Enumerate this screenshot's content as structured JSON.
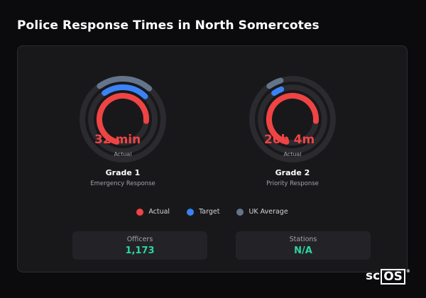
{
  "title": "Police Response Times in North Somercotes",
  "colors": {
    "actual": "#ef4444",
    "target": "#3b82f6",
    "uk_average": "#64748b",
    "stat_value": "#2dd4a3"
  },
  "gauges": [
    {
      "value_text": "32 min",
      "sub_label": "Actual",
      "name": "Grade 1",
      "description": "Emergency Response",
      "actual_fraction": 0.72,
      "target_fraction": 0.22,
      "uk_fraction": 0.21
    },
    {
      "value_text": "20h 4m",
      "sub_label": "Actual",
      "name": "Grade 2",
      "description": "Priority Response",
      "actual_fraction": 0.72,
      "target_fraction": 0.04,
      "uk_fraction": 0.05
    }
  ],
  "legend": [
    {
      "label": "Actual",
      "color": "#ef4444"
    },
    {
      "label": "Target",
      "color": "#3b82f6"
    },
    {
      "label": "UK Average",
      "color": "#64748b"
    }
  ],
  "stats": [
    {
      "label": "Officers",
      "value": "1,173"
    },
    {
      "label": "Stations",
      "value": "N/A"
    }
  ],
  "brand": {
    "prefix": "sc",
    "boxed": "OS",
    "mark": "®"
  }
}
